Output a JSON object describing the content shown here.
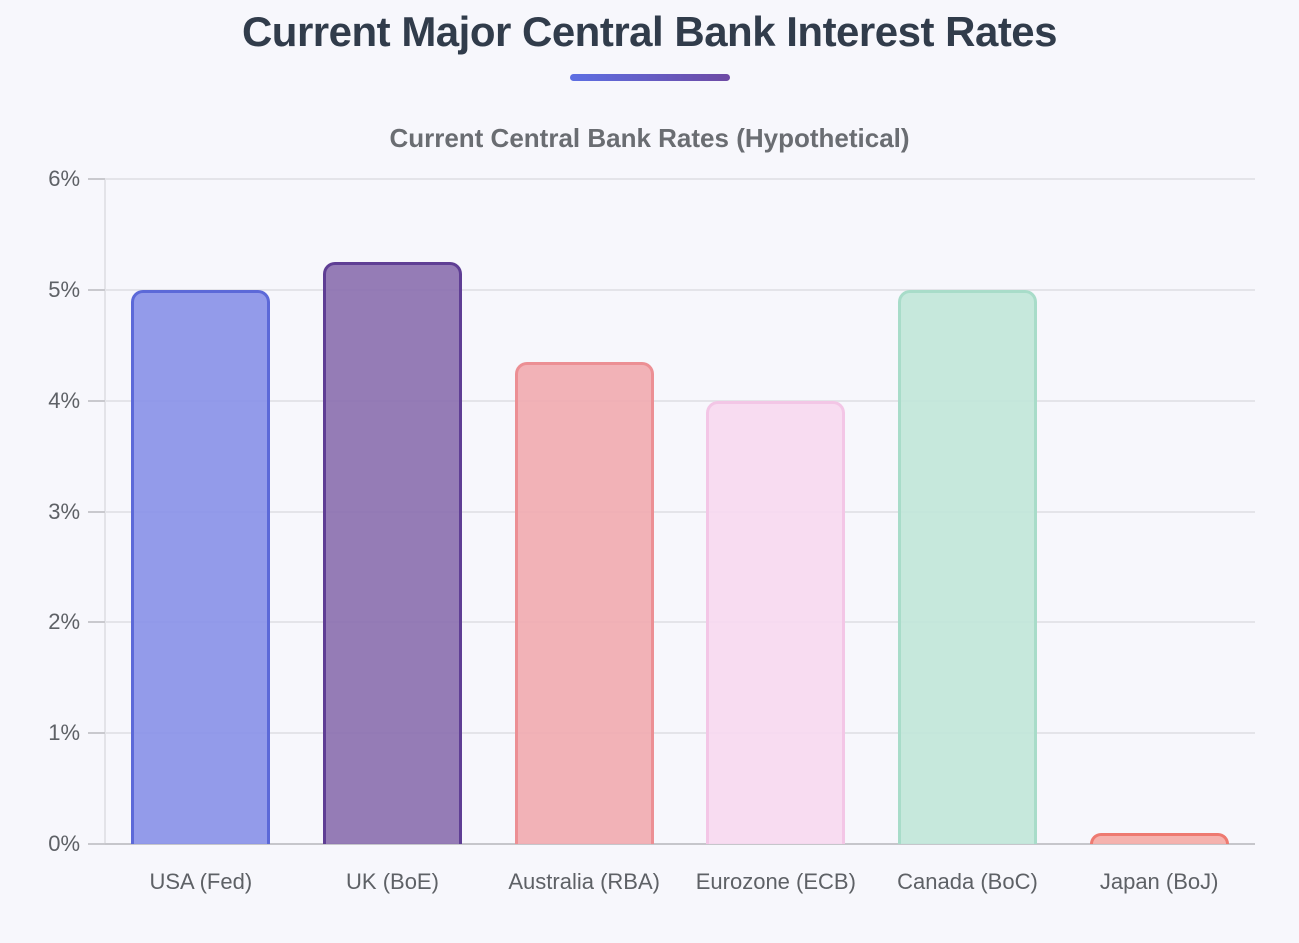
{
  "page": {
    "background": "#f7f7fc"
  },
  "header": {
    "title": "Current Major Central Bank Interest Rates",
    "title_color": "#313c4b",
    "underline_gradient": [
      "#5d6fe3",
      "#6e4aa4"
    ]
  },
  "chart_data": {
    "type": "bar",
    "title": "Current Central Bank Rates (Hypothetical)",
    "title_color": "#6a6d72",
    "categories": [
      "USA (Fed)",
      "UK (BoE)",
      "Australia (RBA)",
      "Eurozone (ECB)",
      "Canada (BoC)",
      "Japan (BoJ)"
    ],
    "values": [
      5.0,
      5.25,
      4.35,
      4.0,
      5.0,
      0.1
    ],
    "value_unit": "percent",
    "ylim": [
      0,
      6
    ],
    "yticks": [
      0,
      1,
      2,
      3,
      4,
      5,
      6
    ],
    "ytick_labels": [
      "0%",
      "1%",
      "2%",
      "3%",
      "4%",
      "5%",
      "6%"
    ],
    "grid": true,
    "legend": "none",
    "bar_styles": [
      {
        "fill": "#8b93e8",
        "border": "#5c69d8"
      },
      {
        "fill": "#8d72b0",
        "border": "#5f3e94"
      },
      {
        "fill": "#f1acb1",
        "border": "#ec8f94"
      },
      {
        "fill": "#f8d9f0",
        "border": "#f3c6e6"
      },
      {
        "fill": "#c2e6d9",
        "border": "#a8dcc9"
      },
      {
        "fill": "#f4aca8",
        "border": "#ee7a71"
      }
    ],
    "axis": {
      "grid_color": "#e4e4e9",
      "baseline_color": "#c6c6cb",
      "axis_line_color": "#e3e3e8",
      "tick_color": "#c9c9ce",
      "label_color": "#5e6166"
    }
  }
}
